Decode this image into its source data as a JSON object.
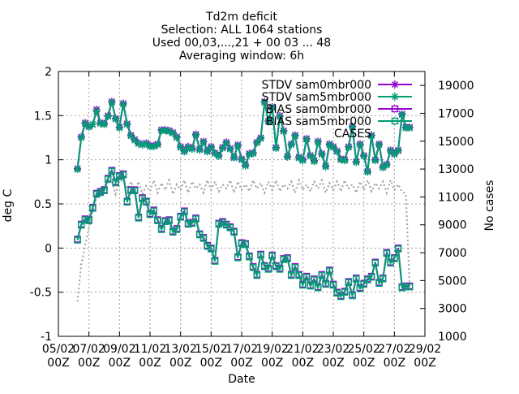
{
  "chart_data": {
    "type": "line",
    "title_lines": [
      "Td2m deficit",
      "Selection: ALL   1064 stations",
      "Used 00,03,...,21 + 00 03 ... 48",
      "Averaging window:  6h"
    ],
    "xlabel": "Date",
    "ylabel": "deg C",
    "y2label": "No cases",
    "xlim": [
      0,
      24
    ],
    "ylim": [
      -1,
      2
    ],
    "y2lim": [
      1000,
      20000
    ],
    "x_tick_labels": [
      {
        "x": 0,
        "top": "05/02",
        "bottom": "00Z"
      },
      {
        "x": 2,
        "top": "07/02",
        "bottom": "00Z"
      },
      {
        "x": 4,
        "top": "09/02",
        "bottom": "00Z"
      },
      {
        "x": 6,
        "top": "11/02",
        "bottom": "00Z"
      },
      {
        "x": 8,
        "top": "13/02",
        "bottom": "00Z"
      },
      {
        "x": 10,
        "top": "15/02",
        "bottom": "00Z"
      },
      {
        "x": 12,
        "top": "17/02",
        "bottom": "00Z"
      },
      {
        "x": 14,
        "top": "19/02",
        "bottom": "00Z"
      },
      {
        "x": 16,
        "top": "21/02",
        "bottom": "00Z"
      },
      {
        "x": 18,
        "top": "23/02",
        "bottom": "00Z"
      },
      {
        "x": 20,
        "top": "25/02",
        "bottom": "00Z"
      },
      {
        "x": 22,
        "top": "27/02",
        "bottom": "00Z"
      },
      {
        "x": 24,
        "top": "29/02",
        "bottom": "00Z"
      }
    ],
    "y_ticks": [
      "-1",
      "-0.5",
      "0",
      "0.5",
      "1",
      "1.5",
      "2"
    ],
    "y2_ticks": [
      "1000",
      "3000",
      "5000",
      "7000",
      "9000",
      "11000",
      "13000",
      "15000",
      "17000",
      "19000"
    ],
    "grid": true,
    "legend_position": "top-right",
    "legend": [
      {
        "label": "STDV sam0mbr000",
        "color": "#9400d3",
        "marker": "star"
      },
      {
        "label": "STDV sam5mbr000",
        "color": "#009e73",
        "marker": "star"
      },
      {
        "label": "BIAS sam0mbr000",
        "color": "#9400d3",
        "marker": "square"
      },
      {
        "label": "BIAS sam5mbr000",
        "color": "#009e73",
        "marker": "square"
      },
      {
        "label": "CASES",
        "color": "#a0a0a0",
        "marker": "none"
      }
    ],
    "x": [
      1.25,
      1.5,
      1.75,
      2.0,
      2.25,
      2.5,
      2.75,
      3.0,
      3.25,
      3.5,
      3.75,
      4.0,
      4.25,
      4.5,
      4.75,
      5.0,
      5.25,
      5.5,
      5.75,
      6.0,
      6.25,
      6.5,
      6.75,
      7.0,
      7.25,
      7.5,
      7.75,
      8.0,
      8.25,
      8.5,
      8.75,
      9.0,
      9.25,
      9.5,
      9.75,
      10.0,
      10.25,
      10.5,
      10.75,
      11.0,
      11.25,
      11.5,
      11.75,
      12.0,
      12.25,
      12.5,
      12.75,
      13.0,
      13.25,
      13.5,
      13.75,
      14.0,
      14.25,
      14.5,
      14.75,
      15.0,
      15.25,
      15.5,
      15.75,
      16.0,
      16.25,
      16.5,
      16.75,
      17.0,
      17.25,
      17.5,
      17.75,
      18.0,
      18.25,
      18.5,
      18.75,
      19.0,
      19.25,
      19.5,
      19.75,
      20.0,
      20.25,
      20.5,
      20.75,
      21.0,
      21.25,
      21.5,
      21.75,
      22.0,
      22.25,
      22.5,
      22.75,
      23.0
    ],
    "series": [
      {
        "name": "STDV sam0mbr000",
        "color": "#9400d3",
        "marker": "star",
        "values": [
          0.9,
          1.26,
          1.42,
          1.38,
          1.4,
          1.57,
          1.42,
          1.41,
          1.5,
          1.66,
          1.47,
          1.37,
          1.64,
          1.41,
          1.28,
          1.23,
          1.19,
          1.17,
          1.19,
          1.16,
          1.16,
          1.18,
          1.34,
          1.34,
          1.33,
          1.31,
          1.26,
          1.15,
          1.1,
          1.15,
          1.13,
          1.29,
          1.12,
          1.21,
          1.1,
          1.15,
          1.08,
          1.05,
          1.14,
          1.2,
          1.13,
          1.03,
          1.17,
          1.01,
          0.94,
          1.07,
          1.08,
          1.2,
          1.25,
          1.66,
          1.44,
          1.6,
          1.14,
          1.5,
          1.33,
          1.04,
          1.18,
          1.28,
          1.03,
          1.0,
          1.24,
          1.05,
          0.99,
          1.21,
          1.07,
          0.93,
          1.18,
          1.15,
          1.1,
          1.01,
          1.0,
          1.15,
          1.38,
          0.98,
          1.18,
          1.05,
          0.87,
          1.28,
          1.0,
          1.18,
          0.92,
          0.95,
          1.11,
          1.07,
          1.11,
          1.52,
          1.37,
          1.37
        ]
      },
      {
        "name": "STDV sam5mbr000",
        "color": "#009e73",
        "marker": "star",
        "values": [
          0.89,
          1.25,
          1.41,
          1.37,
          1.4,
          1.55,
          1.41,
          1.4,
          1.49,
          1.65,
          1.46,
          1.36,
          1.63,
          1.4,
          1.27,
          1.22,
          1.18,
          1.17,
          1.18,
          1.15,
          1.15,
          1.17,
          1.33,
          1.33,
          1.32,
          1.3,
          1.25,
          1.14,
          1.09,
          1.14,
          1.12,
          1.28,
          1.11,
          1.2,
          1.09,
          1.14,
          1.07,
          1.04,
          1.13,
          1.19,
          1.12,
          1.02,
          1.16,
          1.0,
          0.93,
          1.06,
          1.07,
          1.19,
          1.24,
          1.65,
          1.43,
          1.59,
          1.13,
          1.49,
          1.32,
          1.03,
          1.17,
          1.27,
          1.02,
          0.99,
          1.23,
          1.04,
          0.98,
          1.2,
          1.06,
          0.92,
          1.17,
          1.14,
          1.09,
          1.0,
          0.99,
          1.14,
          1.37,
          0.97,
          1.17,
          1.04,
          0.86,
          1.27,
          0.99,
          1.17,
          0.91,
          0.94,
          1.1,
          1.06,
          1.1,
          1.51,
          1.36,
          1.36
        ]
      },
      {
        "name": "BIAS sam0mbr000",
        "color": "#9400d3",
        "marker": "square",
        "values": [
          0.1,
          0.27,
          0.33,
          0.32,
          0.46,
          0.62,
          0.64,
          0.66,
          0.79,
          0.88,
          0.75,
          0.82,
          0.84,
          0.53,
          0.66,
          0.66,
          0.35,
          0.57,
          0.53,
          0.39,
          0.43,
          0.32,
          0.22,
          0.31,
          0.32,
          0.19,
          0.22,
          0.36,
          0.42,
          0.28,
          0.29,
          0.34,
          0.16,
          0.12,
          0.03,
          0.0,
          -0.14,
          0.28,
          0.3,
          0.27,
          0.24,
          0.19,
          -0.1,
          0.06,
          0.05,
          -0.09,
          -0.21,
          -0.3,
          -0.07,
          -0.2,
          -0.23,
          -0.08,
          -0.2,
          -0.23,
          -0.12,
          -0.11,
          -0.3,
          -0.21,
          -0.3,
          -0.41,
          -0.32,
          -0.42,
          -0.35,
          -0.44,
          -0.3,
          -0.4,
          -0.25,
          -0.41,
          -0.5,
          -0.54,
          -0.49,
          -0.38,
          -0.53,
          -0.34,
          -0.45,
          -0.4,
          -0.35,
          -0.32,
          -0.16,
          -0.39,
          -0.34,
          -0.05,
          -0.16,
          -0.11,
          0.0,
          -0.44,
          -0.43,
          -0.43
        ]
      },
      {
        "name": "BIAS sam5mbr000",
        "color": "#009e73",
        "marker": "square",
        "values": [
          0.09,
          0.26,
          0.32,
          0.31,
          0.45,
          0.61,
          0.63,
          0.65,
          0.78,
          0.87,
          0.74,
          0.81,
          0.83,
          0.52,
          0.65,
          0.65,
          0.34,
          0.56,
          0.52,
          0.38,
          0.42,
          0.31,
          0.21,
          0.3,
          0.31,
          0.18,
          0.21,
          0.35,
          0.41,
          0.27,
          0.28,
          0.33,
          0.15,
          0.11,
          0.02,
          -0.01,
          -0.15,
          0.27,
          0.29,
          0.26,
          0.23,
          0.18,
          -0.11,
          0.05,
          0.04,
          -0.1,
          -0.22,
          -0.31,
          -0.08,
          -0.21,
          -0.24,
          -0.09,
          -0.21,
          -0.24,
          -0.13,
          -0.12,
          -0.31,
          -0.22,
          -0.31,
          -0.42,
          -0.33,
          -0.43,
          -0.36,
          -0.45,
          -0.31,
          -0.41,
          -0.26,
          -0.42,
          -0.51,
          -0.55,
          -0.5,
          -0.39,
          -0.54,
          -0.35,
          -0.46,
          -0.41,
          -0.36,
          -0.33,
          -0.17,
          -0.4,
          -0.35,
          -0.06,
          -0.17,
          -0.12,
          -0.01,
          -0.45,
          -0.44,
          -0.44
        ]
      }
    ],
    "cases": {
      "name": "CASES",
      "color": "#a0a0a0",
      "x": [
        1.25,
        1.5,
        1.75,
        2.0,
        2.25,
        2.5,
        2.75,
        3.0,
        3.25,
        3.5,
        3.75,
        4.0,
        4.25,
        4.5,
        4.75,
        5.0,
        5.25,
        5.5,
        5.75,
        6.0,
        6.25,
        6.5,
        6.75,
        7.0,
        7.25,
        7.5,
        7.75,
        8.0,
        8.25,
        8.5,
        8.75,
        9.0,
        9.25,
        9.5,
        9.75,
        10.0,
        10.25,
        10.5,
        10.75,
        11.0,
        11.25,
        11.5,
        11.75,
        12.0,
        12.25,
        12.5,
        12.75,
        13.0,
        13.25,
        13.5,
        13.75,
        14.0,
        14.25,
        14.5,
        14.75,
        15.0,
        15.25,
        15.5,
        15.75,
        16.0,
        16.25,
        16.5,
        16.75,
        17.0,
        17.25,
        17.5,
        17.75,
        18.0,
        18.25,
        18.5,
        18.75,
        19.0,
        19.25,
        19.5,
        19.75,
        20.0,
        20.25,
        20.5,
        20.75,
        21.0,
        21.25,
        21.5,
        21.75,
        22.0,
        22.25,
        22.5,
        22.75,
        23.0
      ],
      "values": [
        3500,
        6200,
        7500,
        8800,
        10000,
        11000,
        11500,
        11900,
        12000,
        12100,
        11200,
        12200,
        12100,
        11600,
        12100,
        11400,
        12100,
        11200,
        11800,
        11400,
        12200,
        11300,
        12000,
        11500,
        12200,
        11200,
        11900,
        11500,
        12200,
        11300,
        12100,
        11600,
        11900,
        11300,
        12200,
        11500,
        12100,
        11400,
        11900,
        11600,
        12200,
        11300,
        12100,
        11500,
        11900,
        11400,
        12200,
        11600,
        12000,
        11300,
        12100,
        11500,
        12200,
        11400,
        11900,
        11600,
        12100,
        11300,
        12200,
        11500,
        11900,
        11400,
        12100,
        11600,
        12200,
        11300,
        12000,
        11500,
        12100,
        11400,
        12200,
        11600,
        11900,
        11300,
        12100,
        11500,
        12200,
        11400,
        12000,
        11600,
        12100,
        11300,
        12200,
        11500,
        11900,
        11400,
        11200,
        4500
      ]
    }
  }
}
